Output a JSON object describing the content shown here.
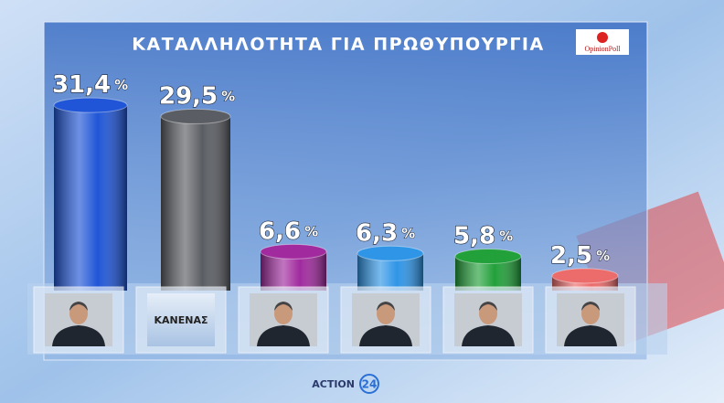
{
  "chart_data": {
    "type": "bar",
    "title": "ΚΑΤΑΛΛΗΛΟΤΗΤΑ ΓΙΑ ΠΡΩΘΥΠΟΥΡΓΙΑ",
    "source": "OpinionPoll",
    "channel": "ACTION",
    "channel_number": "24",
    "unit": "%",
    "categories": [
      null,
      "ΚΑΝΕΝΑΣ",
      null,
      null,
      null,
      null
    ],
    "values": [
      31.4,
      29.5,
      6.6,
      6.3,
      5.8,
      2.5
    ],
    "value_labels": [
      "31,4",
      "29,5",
      "6,6",
      "6,3",
      "5,8",
      "2,5"
    ],
    "colors": [
      "#1f55d6",
      "#5a5d63",
      "#a02a9e",
      "#2f95e6",
      "#22a03a",
      "#ec6b6b"
    ]
  }
}
